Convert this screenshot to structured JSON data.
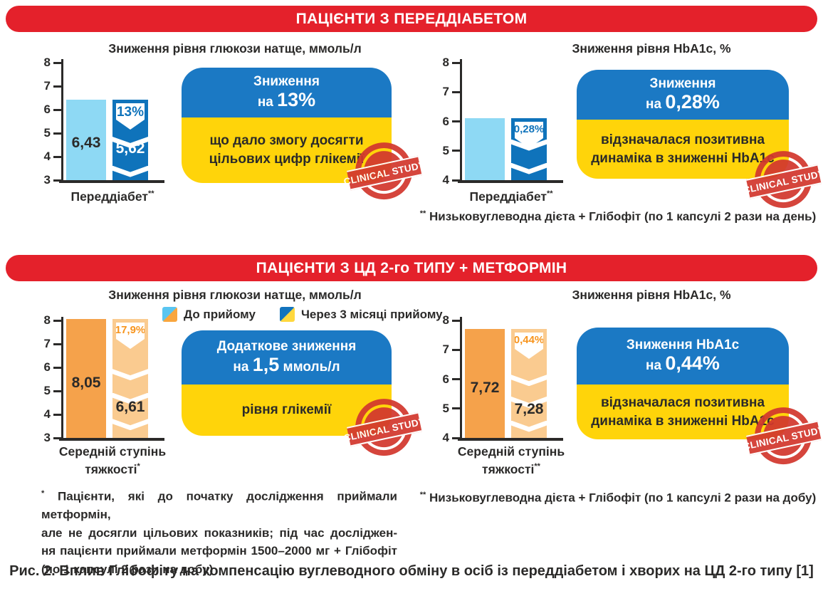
{
  "colors": {
    "banner_red": "#E4212B",
    "box_blue": "#1B79C4",
    "box_yellow": "#FFD40A",
    "stamp_red": "#D2382E",
    "text_dark": "#2B2A29",
    "palettes": {
      "blue": {
        "bar1": "#8ED9F4",
        "bar2": "#0F73BB",
        "flag_text": "#0F73BB",
        "value1": "#2B2A29",
        "value2": "#FFFFFF"
      },
      "orange": {
        "bar1": "#F5A24B",
        "bar2": "#FACB90",
        "flag_text": "#F7941D",
        "value1": "#2B2A29",
        "value2": "#2B2A29"
      }
    }
  },
  "section1": {
    "banner": "ПАЦІЄНТИ З ПЕРЕДДІАБЕТОМ",
    "footnote_marker": "**",
    "footnote_text": " Низьковуглеводна дієта + Глібофіт (по 1 капсулі 2 рази на день)"
  },
  "section2": {
    "banner": "ПАЦІЄНТИ З ЦД 2-го ТИПУ + МЕТФОРМІН",
    "legend": [
      {
        "label": "До прийому",
        "swatch": [
          "#59C5F1",
          "#F9A63E"
        ]
      },
      {
        "label": "Через 3 місяці прийому",
        "swatch": [
          "#1273BD",
          "#FFD83E"
        ]
      }
    ],
    "footnote_left": {
      "marker": "*",
      "lines": [
        " Пацієнти, які до початку дослідження приймали метформін,",
        "але не досягли цільових показників; під час досліджен-",
        "ня пацієнти приймали метформін 1500–2000 мг + Глібофіт",
        "(по 1 капсулі 2 рази на добу)"
      ]
    },
    "footnote_right_marker": "**",
    "footnote_right_text": " Низьковуглеводна дієта + Глібофіт (по 1 капсулі 2 рази на добу)"
  },
  "chart_data": [
    {
      "type": "bar",
      "title": "Зниження рівня глюкози натще, ммоль/л",
      "ylim": [
        3,
        8
      ],
      "yticks": [
        8,
        7,
        6,
        5,
        4,
        3
      ],
      "xlabel_lines": [
        "Переддіабет"
      ],
      "xlabel_marker": "**",
      "palette": "blue",
      "grid": false,
      "series": [
        {
          "name": "До прийому",
          "value": 6.43,
          "label": "6,43"
        },
        {
          "name": "Через 3 місяці прийому",
          "value": 5.62,
          "label": "5,62",
          "reduction_pct": "13%",
          "visual_top": 6.43,
          "chevrons": 2
        }
      ]
    },
    {
      "type": "bar",
      "title": "Зниження рівня HbA1c, %",
      "ylim": [
        4,
        8
      ],
      "yticks": [
        8,
        7,
        6,
        5,
        4
      ],
      "xlabel_lines": [
        "Переддіабет"
      ],
      "xlabel_marker": "**",
      "palette": "blue",
      "grid": false,
      "series": [
        {
          "name": "До прийому",
          "value": 6.1,
          "label": null
        },
        {
          "name": "Через 3 місяці прийому",
          "value": null,
          "label": null,
          "reduction_pct": "0,28%",
          "visual_top": 6.1,
          "chevrons": 2
        }
      ]
    },
    {
      "type": "bar",
      "title": "Зниження рівня глюкози натще, ммоль/л",
      "ylim": [
        3,
        8
      ],
      "yticks": [
        8,
        7,
        6,
        5,
        4,
        3
      ],
      "xlabel_lines": [
        "Середній ступінь",
        "тяжкості"
      ],
      "xlabel_marker": "*",
      "palette": "orange",
      "grid": false,
      "series": [
        {
          "name": "До прийому",
          "value": 8.05,
          "label": "8,05"
        },
        {
          "name": "Через 3 місяці прийому",
          "value": 6.61,
          "label": "6,61",
          "reduction_pct": "17,9%",
          "visual_top": 8.05,
          "chevrons": 3
        }
      ]
    },
    {
      "type": "bar",
      "title": "Зниження рівня HbA1c, %",
      "ylim": [
        4,
        8
      ],
      "yticks": [
        8,
        7,
        6,
        5,
        4
      ],
      "xlabel_lines": [
        "Середній ступінь",
        "тяжкості"
      ],
      "xlabel_marker": "**",
      "palette": "orange",
      "grid": false,
      "series": [
        {
          "name": "До прийому",
          "value": 7.72,
          "label": "7,72"
        },
        {
          "name": "Через 3 місяці прийому",
          "value": 7.28,
          "label": "7,28",
          "reduction_pct": "0,44%",
          "visual_top": 7.72,
          "chevrons": 3
        }
      ]
    }
  ],
  "infoboxes": [
    {
      "line1": "Зниження",
      "line2_prefix": "на ",
      "line2_big": "13%",
      "line2_suffix": "",
      "bottom": "що дало змогу досягти\nцільових цифр глікемії"
    },
    {
      "line1": "Зниження",
      "line2_prefix": "на ",
      "line2_big": "0,28%",
      "line2_suffix": "",
      "bottom": "відзначалася позитивна\nдинаміка в зниженні HbA1c"
    },
    {
      "line1": "Додаткове зниження",
      "line2_prefix": "на ",
      "line2_big": "1,5",
      "line2_suffix": " ммоль/л",
      "bottom": "рівня глікемії"
    },
    {
      "line1": "Зниження HbA1c",
      "line2_prefix": "на ",
      "line2_big": "0,44%",
      "line2_suffix": "",
      "bottom": "відзначалася позитивна\nдинаміка в зниженні HbA1c"
    }
  ],
  "stamp_text": "CLINICAL STUDY",
  "caption": "Рис. 2. Вплив Глібофіту на компенсацію вуглеводного обміну в осіб із переддіабетом і хворих на ЦД 2-го типу [1]"
}
